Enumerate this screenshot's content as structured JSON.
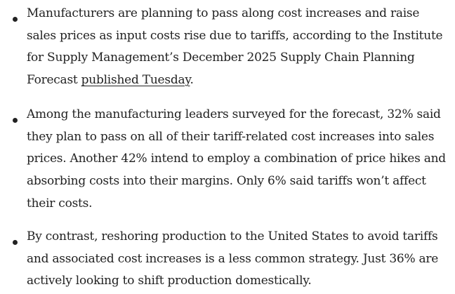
{
  "bullets": [
    {
      "text_before": "Manufacturers are planning to pass along cost increases and raise sales prices as input costs rise due to tariffs, according to the Institute for Supply Management’s December 2025 Supply Chain Planning Forecast ",
      "link_text": "published Tuesday",
      "text_after": "."
    },
    {
      "text": "Among the manufacturing leaders surveyed for the forecast, 32% said they plan to pass on all of their tariff-related cost increases into sales prices. Another 42% intend to employ a combination of price hikes and absorbing costs into their margins. Only 6% said tariffs won’t affect their costs."
    },
    {
      "text": "By contrast, reshoring production to the United States to avoid tariffs and associated cost increases is a less common strategy. Just 36% are actively looking to shift production domestically."
    }
  ]
}
